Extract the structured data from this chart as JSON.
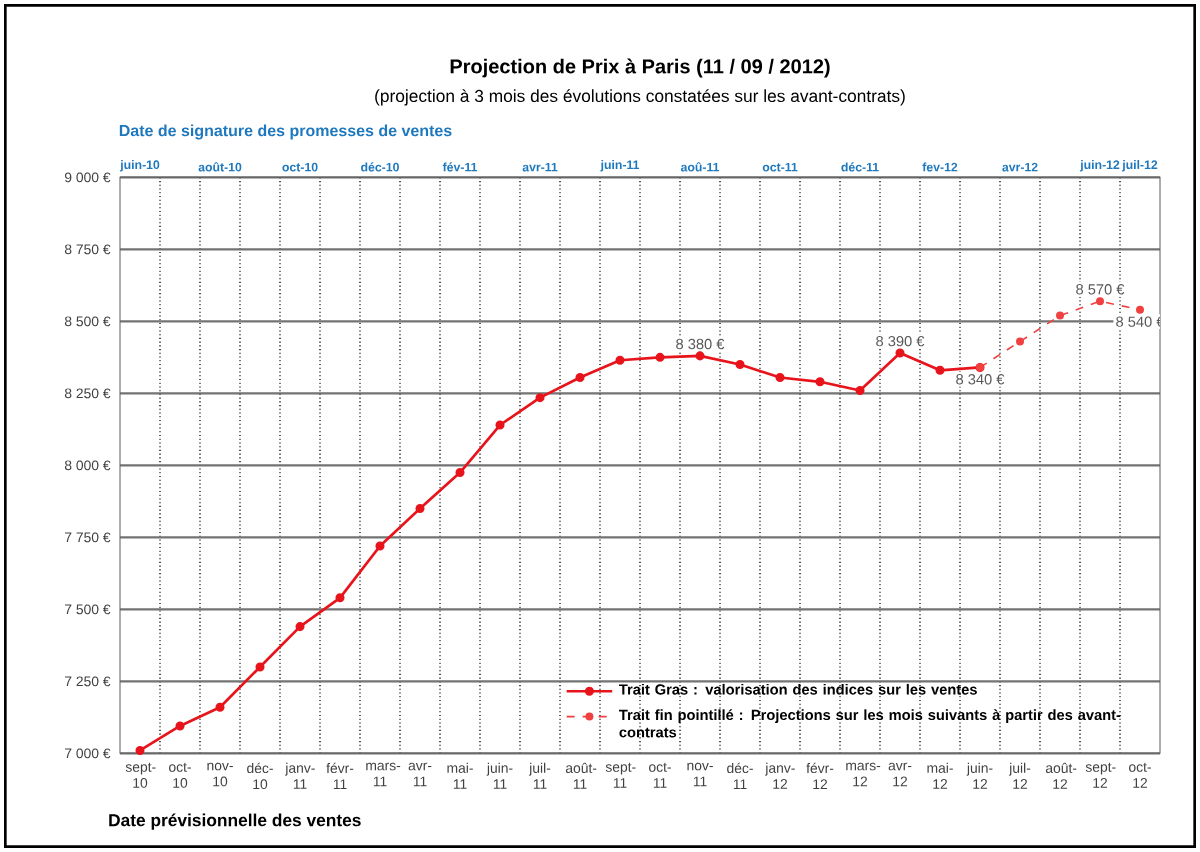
{
  "chart_data": {
    "type": "line",
    "title": "Projection de Prix à Paris (11 / 09 / 2012)",
    "subtitle": "(projection à 3 mois des évolutions constatées sur les avant-contrats)",
    "xlabel": "Date prévisionnelle des ventes",
    "x2label": "Date de signature des promesses de ventes",
    "categories": [
      "sept-10",
      "oct-10",
      "nov-10",
      "déc-10",
      "janv-11",
      "févr-11",
      "mars-11",
      "avr-11",
      "mai-11",
      "juin-11",
      "juil-11",
      "août-11",
      "sept-11",
      "oct-11",
      "nov-11",
      "déc-11",
      "janv-12",
      "févr-12",
      "mars-12",
      "avr-12",
      "mai-12",
      "juin-12",
      "juil-12",
      "août-12",
      "sept-12",
      "oct-12"
    ],
    "annotations": [
      "juin-10",
      "août-10",
      "oct-10",
      "déc-10",
      "fév-11",
      "avr-11",
      "juin-11",
      "aoû-11",
      "oct-11",
      "déc-11",
      "fev-12",
      "avr-12",
      "juin-12",
      "juil-12"
    ],
    "ylim": [
      7000,
      9000
    ],
    "yticks": [
      {
        "value": 7000,
        "label": "7 000 €"
      },
      {
        "value": 7250,
        "label": "7 250 €"
      },
      {
        "value": 7500,
        "label": "7 500 €"
      },
      {
        "value": 7750,
        "label": "7 750 €"
      },
      {
        "value": 8000,
        "label": "8 000 €"
      },
      {
        "value": 8250,
        "label": "8 250 €"
      },
      {
        "value": 8500,
        "label": "8 500 €"
      },
      {
        "value": 8750,
        "label": "8 750 €"
      },
      {
        "value": 9000,
        "label": "9 000 €"
      }
    ],
    "grid": true,
    "legend": "bottom right",
    "marker": "circle",
    "series": [
      {
        "name": "Trait Gras : valorisation des indices sur les ventes",
        "color": "#e8141b",
        "line_style": "solid",
        "values": [
          7010,
          7095,
          7160,
          7300,
          7440,
          7540,
          7720,
          7850,
          7975,
          8140,
          8235,
          8305,
          8365,
          8375,
          8380,
          8350,
          8305,
          8290,
          8260,
          8390,
          8330,
          8340,
          null,
          null,
          null,
          null
        ],
        "value_labels": [
          null,
          null,
          null,
          null,
          null,
          null,
          null,
          null,
          null,
          null,
          null,
          null,
          null,
          null,
          "8 380 €",
          null,
          null,
          null,
          null,
          "8 390 €",
          null,
          "8 340 €",
          null,
          null,
          null,
          null
        ]
      },
      {
        "name": "Trait fin pointillé : Projections sur les mois suivants à partir des avant-contrats",
        "color": "#f04040",
        "line_style": "dashed",
        "values": [
          null,
          null,
          null,
          null,
          null,
          null,
          null,
          null,
          null,
          null,
          null,
          null,
          null,
          null,
          null,
          null,
          null,
          null,
          null,
          null,
          null,
          8340,
          8430,
          8520,
          8570,
          8540
        ],
        "value_labels": [
          null,
          null,
          null,
          null,
          null,
          null,
          null,
          null,
          null,
          null,
          null,
          null,
          null,
          null,
          null,
          null,
          null,
          null,
          null,
          null,
          null,
          null,
          null,
          null,
          "8 570 €",
          "8 540 €"
        ]
      }
    ]
  }
}
